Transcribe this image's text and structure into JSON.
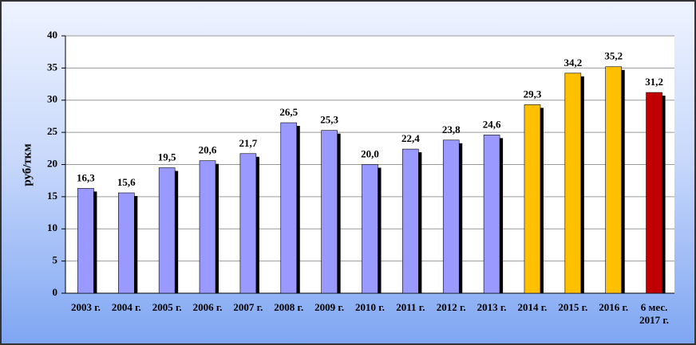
{
  "chart_data": {
    "type": "bar",
    "y_label": "руб/ткм",
    "categories": [
      "2003 г.",
      "2004 г.",
      "2005 г.",
      "2006 г.",
      "2007 г.",
      "2008 г.",
      "2009 г.",
      "2010 г.",
      "2011 г.",
      "2012 г.",
      "2013 г.",
      "2014 г.",
      "2015 г.",
      "2016 г.",
      "6 мес. 2017 г."
    ],
    "values": [
      16.3,
      15.6,
      19.5,
      20.6,
      21.7,
      26.5,
      25.3,
      20.0,
      22.4,
      23.8,
      24.6,
      29.3,
      34.2,
      35.2,
      31.2
    ],
    "value_labels": [
      "16,3",
      "15,6",
      "19,5",
      "20,6",
      "21,7",
      "26,5",
      "25,3",
      "20,0",
      "22,4",
      "23,8",
      "24,6",
      "29,3",
      "34,2",
      "35,2",
      "31,2"
    ],
    "colors": [
      "#9999ff",
      "#9999ff",
      "#9999ff",
      "#9999ff",
      "#9999ff",
      "#9999ff",
      "#9999ff",
      "#9999ff",
      "#9999ff",
      "#9999ff",
      "#9999ff",
      "#ffc000",
      "#ffc000",
      "#ffc000",
      "#c00000"
    ],
    "ylim": [
      0,
      40
    ],
    "yticks": [
      0,
      5,
      10,
      15,
      20,
      25,
      30,
      35,
      40
    ],
    "grid": true
  }
}
